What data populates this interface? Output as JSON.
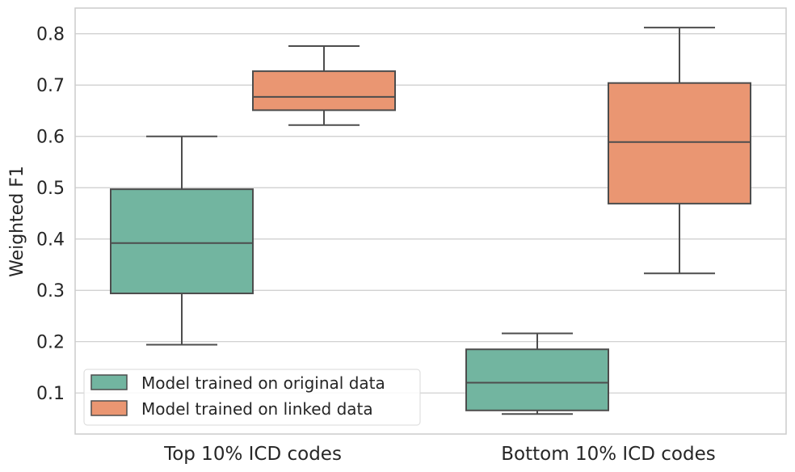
{
  "chart_data": {
    "type": "box",
    "title": "",
    "xlabel": "",
    "ylabel": "Weighted F1",
    "ylim": [
      0.02,
      0.85
    ],
    "yticks": [
      0.1,
      0.2,
      0.3,
      0.4,
      0.5,
      0.6,
      0.7,
      0.8
    ],
    "ytick_labels": [
      "0.1",
      "0.2",
      "0.3",
      "0.4",
      "0.5",
      "0.6",
      "0.7",
      "0.8"
    ],
    "grid": "horizontal",
    "categories": [
      "Top 10% ICD codes",
      "Bottom 10% ICD codes"
    ],
    "series": [
      {
        "name": "Model trained on original data",
        "color": "#72b5a0",
        "boxes": [
          {
            "whisker_low": 0.194,
            "q1": 0.294,
            "median": 0.392,
            "q3": 0.497,
            "whisker_high": 0.6
          },
          {
            "whisker_low": 0.059,
            "q1": 0.066,
            "median": 0.12,
            "q3": 0.185,
            "whisker_high": 0.216
          }
        ]
      },
      {
        "name": "Model trained on linked data",
        "color": "#ea9672",
        "boxes": [
          {
            "whisker_low": 0.622,
            "q1": 0.651,
            "median": 0.677,
            "q3": 0.727,
            "whisker_high": 0.776
          },
          {
            "whisker_low": 0.333,
            "q1": 0.469,
            "median": 0.589,
            "q3": 0.704,
            "whisker_high": 0.812
          }
        ]
      }
    ],
    "legend": {
      "placement": "lower-left",
      "entries": [
        "Model trained on original data",
        "Model trained on linked data"
      ]
    },
    "colors": {
      "grid": "#cccccc",
      "frame": "#cccccc",
      "box_edge": "#4d4d4d"
    }
  }
}
